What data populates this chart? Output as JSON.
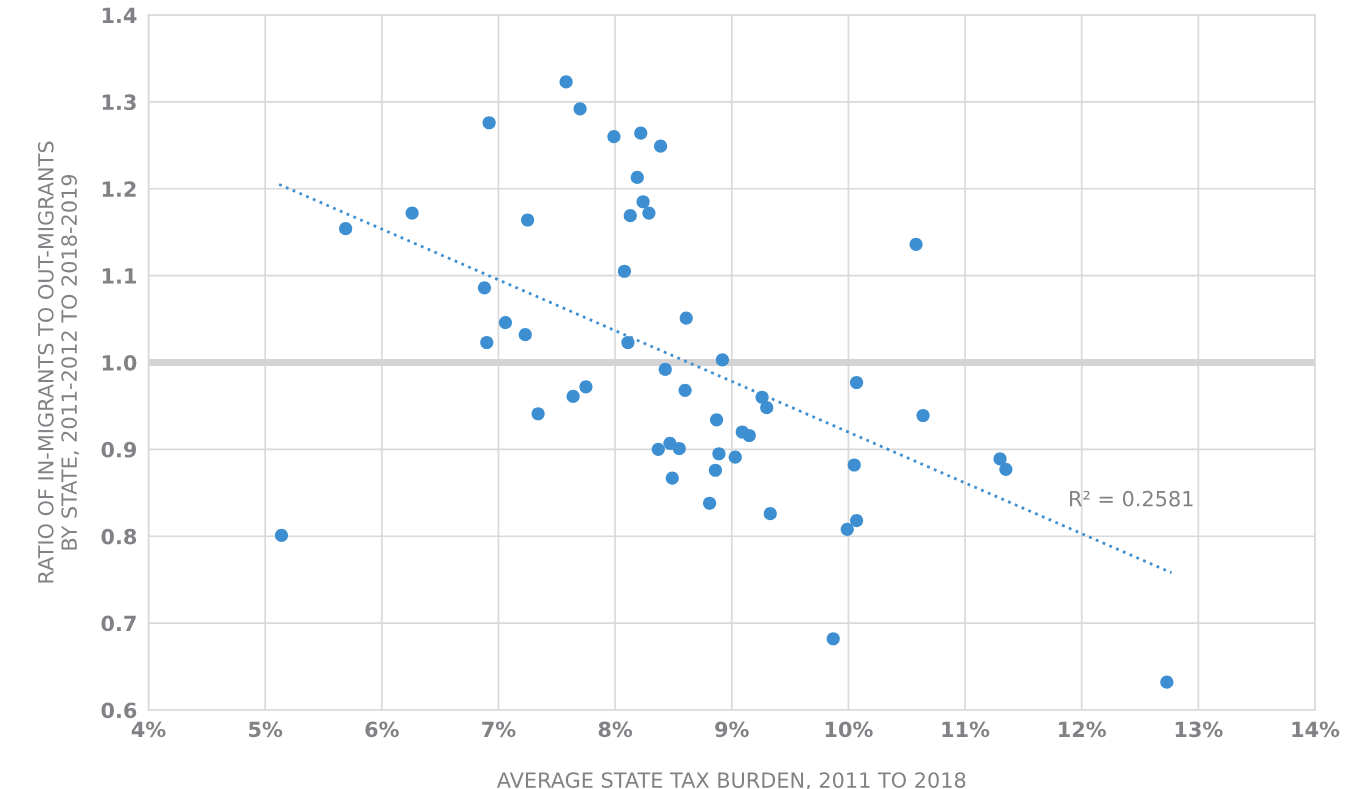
{
  "chart_data": {
    "type": "scatter",
    "xlabel": "AVERAGE STATE TAX BURDEN, 2011 TO 2018",
    "ylabel": "RATIO OF IN-MIGRANTS TO OUT-MIGRANTS\nBY STATE, 2011-2012 TO 2018-2019",
    "xlim": [
      4,
      14
    ],
    "ylim": [
      0.6,
      1.4
    ],
    "xticks": [
      {
        "value": 4,
        "label": "4%"
      },
      {
        "value": 5,
        "label": "5%"
      },
      {
        "value": 6,
        "label": "6%"
      },
      {
        "value": 7,
        "label": "7%"
      },
      {
        "value": 8,
        "label": "8%"
      },
      {
        "value": 9,
        "label": "9%"
      },
      {
        "value": 10,
        "label": "10%"
      },
      {
        "value": 11,
        "label": "11%"
      },
      {
        "value": 12,
        "label": "12%"
      },
      {
        "value": 13,
        "label": "13%"
      },
      {
        "value": 14,
        "label": "14%"
      }
    ],
    "yticks": [
      0.6,
      0.7,
      0.8,
      0.9,
      {
        "value": 1,
        "label": "1.0"
      },
      1.1,
      1.2,
      1.3,
      1.4
    ],
    "grid": true,
    "legend": false,
    "marker": "circle",
    "series": [
      {
        "color": "#3d8fd1",
        "x": [
          5.14,
          5.69,
          6.26,
          6.92,
          6.88,
          6.9,
          7.06,
          7.23,
          7.25,
          7.34,
          7.58,
          7.7,
          7.64,
          7.75,
          7.99,
          8.22,
          8.39,
          8.19,
          8.24,
          8.13,
          8.29,
          8.08,
          8.11,
          8.61,
          8.92,
          8.43,
          8.6,
          8.37,
          8.47,
          8.55,
          8.49,
          8.81,
          8.86,
          8.89,
          8.87,
          9.03,
          9.09,
          9.15,
          9.26,
          9.3,
          9.33,
          10.07,
          10.05,
          10.07,
          9.99,
          10.64,
          10.58,
          11.3,
          11.35,
          9.87,
          12.73
        ],
        "values": [
          0.801,
          1.154,
          1.172,
          1.276,
          1.086,
          1.023,
          1.046,
          1.032,
          1.164,
          0.941,
          1.323,
          1.292,
          0.961,
          0.972,
          1.26,
          1.264,
          1.249,
          1.213,
          1.185,
          1.169,
          1.172,
          1.105,
          1.023,
          1.051,
          1.003,
          0.992,
          0.968,
          0.9,
          0.907,
          0.901,
          0.867,
          0.838,
          0.876,
          0.895,
          0.934,
          0.891,
          0.92,
          0.916,
          0.96,
          0.948,
          0.826,
          0.977,
          0.882,
          0.818,
          0.808,
          0.939,
          1.136,
          0.889,
          0.877,
          0.682,
          0.632
        ]
      },
      {
        "type": "line",
        "color": "#3d8fd1",
        "line_style": "dotted",
        "marker": "none",
        "x": [
          5.12,
          12.77
        ],
        "values": [
          1.205,
          0.758
        ]
      }
    ],
    "ref_lines": [
      {
        "axis": "y",
        "value": 1.0,
        "color": "#d4d4d6"
      }
    ],
    "annotations": [
      "R² = 0.2581"
    ]
  }
}
